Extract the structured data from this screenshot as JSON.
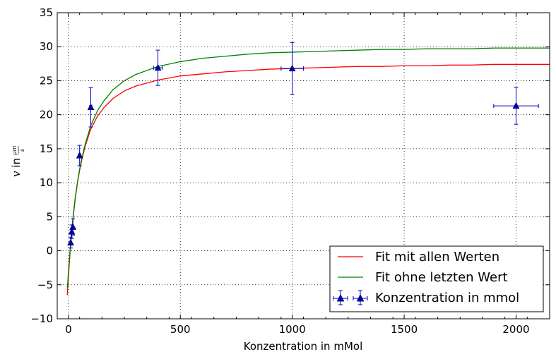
{
  "chart_data": {
    "type": "scatter",
    "xlabel": "Konzentration in mMol",
    "ylabel_var": "v",
    "ylabel_mid": " in ",
    "ylabel_num": "μm",
    "ylabel_den": "s",
    "xlim": [
      -50,
      2150
    ],
    "ylim": [
      -10,
      35
    ],
    "xticks": [
      0,
      500,
      1000,
      1500,
      2000
    ],
    "yticks": [
      -10,
      -5,
      0,
      5,
      10,
      15,
      20,
      25,
      30,
      35
    ],
    "ytick_labels": [
      "−10",
      "−5",
      "0",
      "5",
      "10",
      "15",
      "20",
      "25",
      "30",
      "35"
    ],
    "grid": true,
    "legend_position": "lower-right",
    "series": [
      {
        "name": "Fit mit allen Werten",
        "kind": "line",
        "color": "#ff0000",
        "x": [
          -5,
          0,
          2,
          5,
          10,
          15,
          20,
          30,
          40,
          50,
          60,
          75,
          100,
          130,
          160,
          200,
          250,
          300,
          400,
          500,
          600,
          700,
          800,
          900,
          1000,
          1100,
          1200,
          1300,
          1400,
          1500,
          1600,
          1700,
          1800,
          1900,
          2000,
          2100,
          2150
        ],
        "y": [
          -6.5,
          -3.9,
          -2.9,
          -1.4,
          0.8,
          2.8,
          4.5,
          7.5,
          9.9,
          11.8,
          13.4,
          15.4,
          17.9,
          19.8,
          21.1,
          22.4,
          23.5,
          24.2,
          25.1,
          25.7,
          26.0,
          26.3,
          26.5,
          26.7,
          26.8,
          26.9,
          27.0,
          27.1,
          27.1,
          27.2,
          27.2,
          27.3,
          27.3,
          27.4,
          27.4,
          27.4,
          27.4
        ]
      },
      {
        "name": "Fit ohne letzten Wert",
        "kind": "line",
        "color": "#008000",
        "x": [
          -5,
          0,
          2,
          5,
          10,
          15,
          20,
          30,
          40,
          50,
          60,
          75,
          100,
          130,
          160,
          200,
          250,
          300,
          400,
          500,
          600,
          700,
          800,
          900,
          1000,
          1100,
          1200,
          1300,
          1400,
          1500,
          1600,
          1700,
          1800,
          1900,
          2000,
          2100,
          2150
        ],
        "y": [
          -5.5,
          -3.2,
          -2.3,
          -0.9,
          1.2,
          3.1,
          4.8,
          7.7,
          10.0,
          12.0,
          13.6,
          15.7,
          18.4,
          20.6,
          22.1,
          23.7,
          25.0,
          25.9,
          27.1,
          27.8,
          28.3,
          28.6,
          28.9,
          29.1,
          29.2,
          29.3,
          29.4,
          29.5,
          29.6,
          29.6,
          29.7,
          29.7,
          29.7,
          29.8,
          29.8,
          29.8,
          29.8
        ]
      },
      {
        "name": "Konzentration in mmol",
        "kind": "errorbar",
        "color": "#0000bf",
        "points": [
          {
            "x": 10,
            "y": 1.2,
            "xerr": 2,
            "yerr": 0.8
          },
          {
            "x": 15,
            "y": 2.8,
            "xerr": 3,
            "yerr": 1.0
          },
          {
            "x": 20,
            "y": 3.5,
            "xerr": 4,
            "yerr": 1.2
          },
          {
            "x": 50,
            "y": 14.0,
            "xerr": 5,
            "yerr": 1.5
          },
          {
            "x": 100,
            "y": 21.1,
            "xerr": 5,
            "yerr": 2.9
          },
          {
            "x": 400,
            "y": 26.9,
            "xerr": 20,
            "yerr": 2.6
          },
          {
            "x": 1000,
            "y": 26.8,
            "xerr": 50,
            "yerr": 3.8
          },
          {
            "x": 2000,
            "y": 21.3,
            "xerr": 100,
            "yerr": 2.7
          }
        ]
      }
    ]
  }
}
